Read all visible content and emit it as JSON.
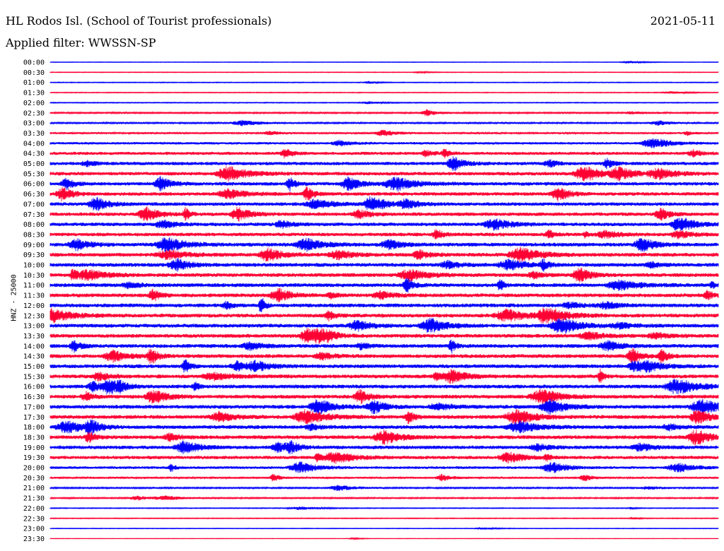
{
  "header": {
    "title": "HL Rodos Isl. (School of Tourist professionals)",
    "date": "2021-05-11",
    "filter": "Applied filter: WWSSN-SP"
  },
  "chart_data": {
    "type": "line",
    "title": "HL Rodos Isl. (School of Tourist professionals)",
    "subtitle": "Applied filter: WWSSN-SP",
    "date": "2021-05-11",
    "ylabel": "HNZ - 25000",
    "colors": {
      "even_trace": "#0000ff",
      "odd_trace": "#ff0033"
    },
    "rows": [
      {
        "time": "00:00",
        "amplitude": 0.12
      },
      {
        "time": "00:30",
        "amplitude": 0.15
      },
      {
        "time": "01:00",
        "amplitude": 0.18
      },
      {
        "time": "01:30",
        "amplitude": 0.18
      },
      {
        "time": "02:00",
        "amplitude": 0.2
      },
      {
        "time": "02:30",
        "amplitude": 0.35
      },
      {
        "time": "03:00",
        "amplitude": 0.35
      },
      {
        "time": "03:30",
        "amplitude": 0.45
      },
      {
        "time": "04:00",
        "amplitude": 0.55
      },
      {
        "time": "04:30",
        "amplitude": 0.7
      },
      {
        "time": "05:00",
        "amplitude": 0.75
      },
      {
        "time": "05:30",
        "amplitude": 0.8
      },
      {
        "time": "06:00",
        "amplitude": 0.8
      },
      {
        "time": "06:30",
        "amplitude": 0.8
      },
      {
        "time": "07:00",
        "amplitude": 0.8
      },
      {
        "time": "07:30",
        "amplitude": 0.8
      },
      {
        "time": "08:00",
        "amplitude": 0.8
      },
      {
        "time": "08:30",
        "amplitude": 0.8
      },
      {
        "time": "09:00",
        "amplitude": 0.85
      },
      {
        "time": "09:30",
        "amplitude": 0.85
      },
      {
        "time": "10:00",
        "amplitude": 0.85
      },
      {
        "time": "10:30",
        "amplitude": 0.85
      },
      {
        "time": "11:00",
        "amplitude": 0.85
      },
      {
        "time": "11:30",
        "amplitude": 0.85
      },
      {
        "time": "12:00",
        "amplitude": 0.85
      },
      {
        "time": "12:30",
        "amplitude": 0.85
      },
      {
        "time": "13:00",
        "amplitude": 0.85
      },
      {
        "time": "13:30",
        "amplitude": 0.85
      },
      {
        "time": "14:00",
        "amplitude": 0.85
      },
      {
        "time": "14:30",
        "amplitude": 0.85
      },
      {
        "time": "15:00",
        "amplitude": 0.85
      },
      {
        "time": "15:30",
        "amplitude": 0.85
      },
      {
        "time": "16:00",
        "amplitude": 0.85
      },
      {
        "time": "16:30",
        "amplitude": 0.85
      },
      {
        "time": "17:00",
        "amplitude": 0.85
      },
      {
        "time": "17:30",
        "amplitude": 0.85
      },
      {
        "time": "18:00",
        "amplitude": 0.85
      },
      {
        "time": "18:30",
        "amplitude": 0.85
      },
      {
        "time": "19:00",
        "amplitude": 0.8
      },
      {
        "time": "19:30",
        "amplitude": 0.75
      },
      {
        "time": "20:00",
        "amplitude": 0.6
      },
      {
        "time": "20:30",
        "amplitude": 0.45
      },
      {
        "time": "21:00",
        "amplitude": 0.35
      },
      {
        "time": "21:30",
        "amplitude": 0.3
      },
      {
        "time": "22:00",
        "amplitude": 0.2
      },
      {
        "time": "22:30",
        "amplitude": 0.18
      },
      {
        "time": "23:00",
        "amplitude": 0.15
      },
      {
        "time": "23:30",
        "amplitude": 0.1
      }
    ]
  }
}
